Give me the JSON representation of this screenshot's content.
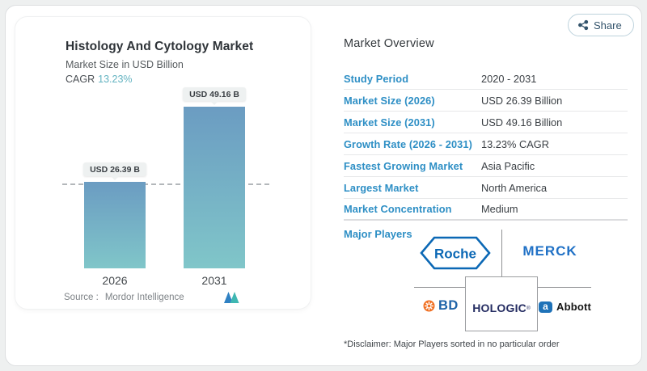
{
  "page": {
    "share_label": "Share"
  },
  "chart_card": {
    "title": "Histology And Cytology Market",
    "subtitle": "Market Size in USD Billion",
    "cagr_label": "CAGR",
    "cagr_value": "13.23%",
    "source_label": "Source :",
    "source_value": "Mordor Intelligence"
  },
  "chart_data": {
    "type": "bar",
    "title": "Histology And Cytology Market",
    "ylabel": "Market Size in USD Billion",
    "categories": [
      "2026",
      "2031"
    ],
    "values": [
      26.39,
      49.16
    ],
    "value_labels": [
      "USD 26.39 B",
      "USD 49.16 B"
    ],
    "ylim": [
      0,
      55
    ],
    "reference_line_y": 26.39,
    "cagr_percent": 13.23,
    "grid": false,
    "legend": false,
    "bar_gradient_top": "#6b9cc2",
    "bar_gradient_bottom": "#80c6c9"
  },
  "overview": {
    "title": "Market Overview",
    "rows": [
      {
        "label": "Study Period",
        "value": "2020 - 2031"
      },
      {
        "label": "Market Size (2026)",
        "value": "USD 26.39 Billion"
      },
      {
        "label": "Market Size (2031)",
        "value": "USD 49.16 Billion"
      },
      {
        "label": "Growth Rate (2026 - 2031)",
        "value": "13.23% CAGR"
      },
      {
        "label": "Fastest Growing Market",
        "value": "Asia Pacific"
      },
      {
        "label": "Largest Market",
        "value": "North America"
      },
      {
        "label": "Market Concentration",
        "value": "Medium"
      }
    ],
    "major_players_label": "Major Players",
    "disclaimer": "*Disclaimer: Major Players sorted in no particular order"
  },
  "players": {
    "roche": "Roche",
    "merck": "MERCK",
    "bd": "BD",
    "hologic": "HOLOGIC",
    "hologic_reg": "®",
    "abbott": "Abbott",
    "abbott_symbol": "a"
  },
  "colors": {
    "label_blue": "#2e8fc5",
    "cagr_teal": "#63b3c1",
    "bar_top": "#6b9cc2",
    "bar_bottom": "#80c6c9",
    "roche_blue": "#0b68b5",
    "merck_blue": "#2071c6",
    "bd_blue": "#1e63a8",
    "bd_orange": "#f06f22",
    "hologic_navy": "#252d62",
    "abbott_blue": "#1e72b8"
  }
}
